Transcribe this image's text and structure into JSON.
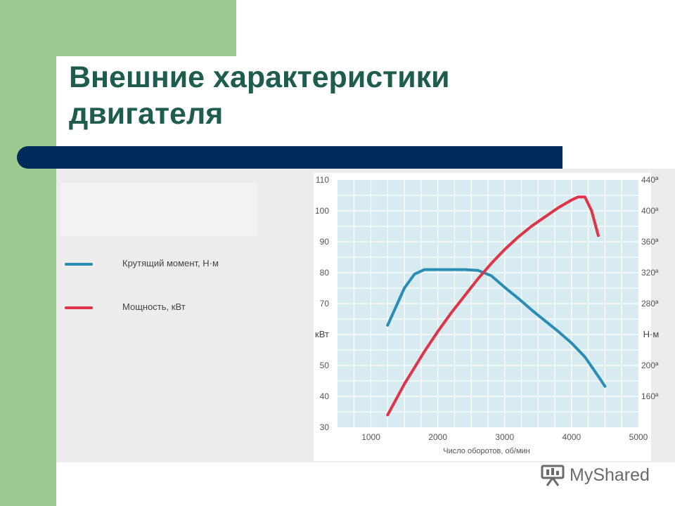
{
  "slide": {
    "title_line1": "Внешние характеристики",
    "title_line2": "двигателя",
    "colors": {
      "green": "#9ccb91",
      "navy": "#012a5a",
      "title": "#1e5c4e"
    }
  },
  "watermark": {
    "text": "MyShared",
    "icon": "presentation-board-icon"
  },
  "chart_data": {
    "type": "line",
    "x_axis": {
      "label": "Число оборотов, об/мин",
      "range": [
        500,
        5000
      ],
      "ticks": [
        1000,
        2000,
        3000,
        4000,
        5000
      ]
    },
    "y_left": {
      "label": "кВт",
      "range": [
        30,
        110
      ],
      "ticks": [
        30,
        40,
        50,
        70,
        80,
        90,
        100,
        110
      ]
    },
    "y_right": {
      "label": "Н·м",
      "range": [
        120,
        440
      ],
      "ticks": [
        160,
        200,
        280,
        320,
        360,
        400,
        440
      ],
      "tick_suffix": "ª"
    },
    "grid": true,
    "legend_position": "left",
    "series": [
      {
        "name": "Крутящий момент, Н·м",
        "axis": "right",
        "color": "#2b8db5",
        "x": [
          1250,
          1500,
          1650,
          1800,
          2000,
          2200,
          2400,
          2600,
          2800,
          3000,
          3200,
          3400,
          3600,
          3800,
          4000,
          4200,
          4400,
          4500
        ],
        "y": [
          252,
          300,
          318,
          324,
          324,
          324,
          324,
          323,
          316,
          301,
          287,
          272,
          258,
          244,
          229,
          211,
          186,
          173
        ]
      },
      {
        "name": "Мощность, кВт",
        "axis": "left",
        "color": "#e03348",
        "x": [
          1250,
          1500,
          1800,
          2000,
          2200,
          2400,
          2600,
          2800,
          3000,
          3200,
          3400,
          3600,
          3800,
          4000,
          4100,
          4200,
          4300,
          4400
        ],
        "y": [
          34,
          44,
          54.5,
          61,
          67,
          72.5,
          78,
          83,
          87.5,
          91.5,
          95,
          98,
          101,
          103.5,
          104.5,
          104.5,
          100,
          92
        ]
      }
    ]
  }
}
